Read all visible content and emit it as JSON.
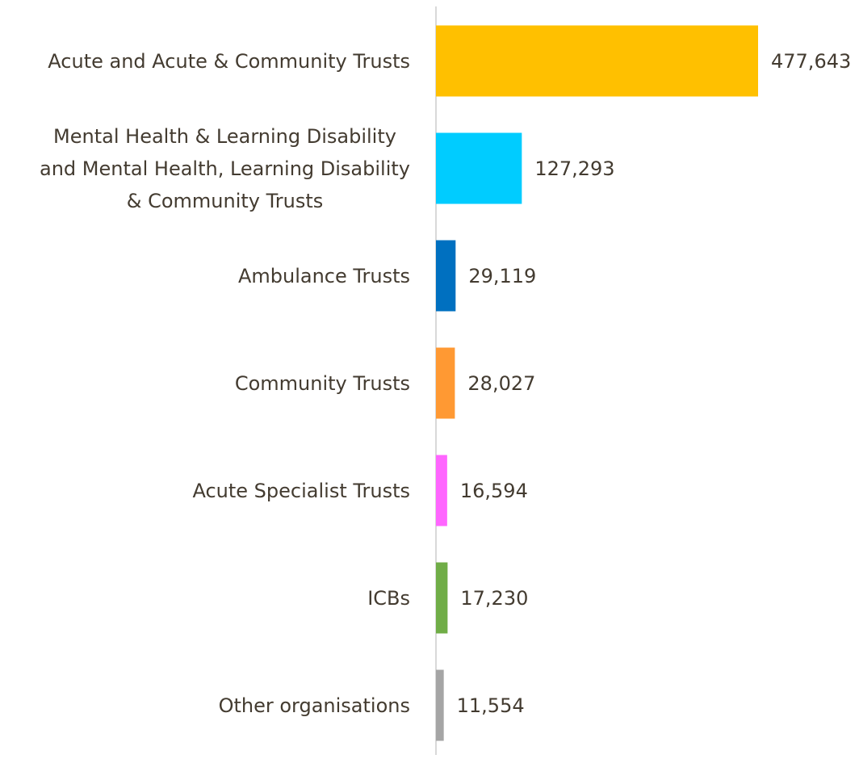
{
  "chart_data": {
    "type": "bar",
    "orientation": "horizontal",
    "categories": [
      "Acute and Acute & Community Trusts",
      "Mental Health & Learning Disability\nand Mental Health, Learning Disability\n& Community Trusts",
      "Ambulance Trusts",
      "Community Trusts",
      "Acute Specialist Trusts",
      "ICBs",
      "Other organisations"
    ],
    "values": [
      477643,
      127293,
      29119,
      28027,
      16594,
      17230,
      11554
    ],
    "value_labels": [
      "477,643",
      "127,293",
      "29,119",
      "28,027",
      "16,594",
      "17,230",
      "11,554"
    ],
    "colors": [
      "#ffc000",
      "#00ccff",
      "#0070c0",
      "#ff9933",
      "#ff66ff",
      "#70ad47",
      "#a5a5a5"
    ]
  }
}
